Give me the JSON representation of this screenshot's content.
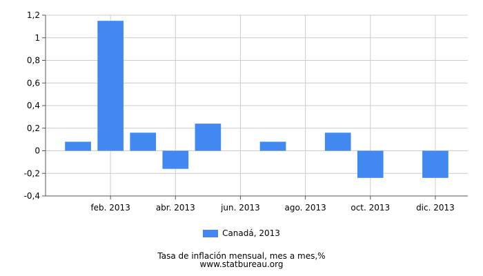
{
  "chart_data": {
    "type": "bar",
    "series": [
      {
        "name": "Canadá, 2013",
        "color": "#4189f0",
        "values": [
          0.08,
          1.15,
          0.16,
          -0.16,
          0.24,
          0.0,
          0.08,
          0.0,
          0.16,
          -0.24,
          0.0,
          -0.24
        ]
      }
    ],
    "x_tick_labels": [
      "feb. 2013",
      "abr. 2013",
      "jun. 2013",
      "ago. 2013",
      "oct. 2013",
      "dic. 2013"
    ],
    "y_ticks": [
      "1,2",
      "1",
      "0,8",
      "0,6",
      "0,4",
      "0,2",
      "0",
      "-0,2",
      "-0,4"
    ],
    "ylim": [
      -0.4,
      1.2
    ],
    "grid": true,
    "legend": "bottom-center",
    "title": "Tasa de inflación mensual, mes a mes,%",
    "source": "www.statbureau.org"
  },
  "legend": {
    "label": "Canadá, 2013"
  },
  "caption": {
    "title": "Tasa de inflación mensual, mes a mes,%",
    "source": "www.statbureau.org"
  }
}
